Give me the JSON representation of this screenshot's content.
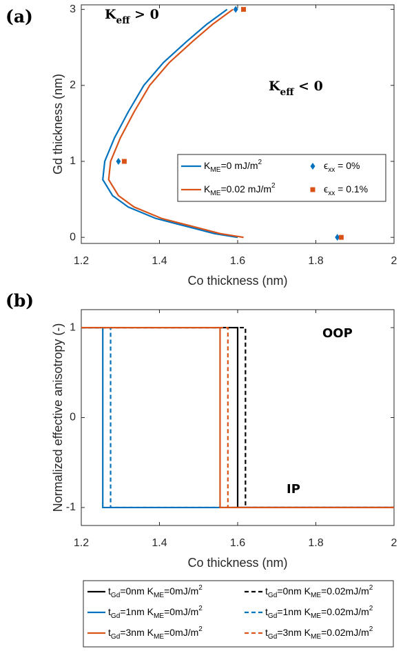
{
  "chart_data": [
    {
      "type": "line",
      "panel_label": "(a)",
      "x_label": "Co thickness (nm)",
      "y_label": "Gd thickness (nm)",
      "xlim": [
        1.2,
        2
      ],
      "xticks": [
        1.2,
        1.4,
        1.6,
        1.8,
        2
      ],
      "ylim": [
        -0.08,
        3.06
      ],
      "yticks": [
        0,
        1,
        2,
        3
      ],
      "grid": false,
      "annotations": [
        [
          {
            "text": "K"
          },
          {
            "text": "eff",
            "sub": true
          },
          {
            "text": " > 0"
          }
        ],
        [
          {
            "text": "K"
          },
          {
            "text": "eff",
            "sub": true
          },
          {
            "text": " < 0"
          }
        ]
      ],
      "series": [
        {
          "name": [
            {
              "text": "K"
            },
            {
              "text": "ME",
              "sub": true
            },
            {
              "text": "=0 mJ/m"
            },
            {
              "text": "2",
              "sup": true
            }
          ],
          "color": "#0072bd",
          "kind": "line",
          "x": [
            1.6,
            1.54,
            1.48,
            1.39,
            1.32,
            1.28,
            1.255,
            1.26,
            1.285,
            1.32,
            1.36,
            1.41,
            1.47,
            1.52,
            1.573
          ],
          "values": [
            0,
            0.05,
            0.13,
            0.25,
            0.4,
            0.55,
            0.76,
            1,
            1.31,
            1.65,
            2,
            2.3,
            2.58,
            2.8,
            3
          ]
        },
        {
          "name": [
            {
              "text": "K"
            },
            {
              "text": "ME",
              "sub": true
            },
            {
              "text": "=0.02 mJ/m"
            },
            {
              "text": "2",
              "sup": true
            }
          ],
          "color": "#d95319",
          "kind": "line",
          "x": [
            1.615,
            1.555,
            1.495,
            1.405,
            1.335,
            1.295,
            1.27,
            1.275,
            1.3,
            1.335,
            1.375,
            1.425,
            1.485,
            1.535,
            1.588
          ],
          "values": [
            0,
            0.05,
            0.13,
            0.25,
            0.4,
            0.55,
            0.76,
            1,
            1.31,
            1.65,
            2,
            2.3,
            2.58,
            2.8,
            3
          ]
        },
        {
          "name": [
            {
              "text": "ϵ"
            },
            {
              "text": "xx",
              "sub": true
            },
            {
              "text": " = 0%"
            }
          ],
          "color": "#0072bd",
          "kind": "scatter",
          "marker": "diamond",
          "x": [
            1.855,
            1.295,
            1.595
          ],
          "values": [
            0,
            1,
            3
          ]
        },
        {
          "name": [
            {
              "text": "ϵ"
            },
            {
              "text": "xx",
              "sub": true
            },
            {
              "text": " = 0.1%"
            }
          ],
          "color": "#d95319",
          "kind": "scatter",
          "marker": "square",
          "x": [
            1.865,
            1.31,
            1.615
          ],
          "values": [
            0,
            1,
            3
          ]
        }
      ]
    },
    {
      "type": "line",
      "panel_label": "(b)",
      "x_label": "Co thickness (nm)",
      "y_label": "Normalized effective anisotropy (-)",
      "xlim": [
        1.2,
        2
      ],
      "xticks": [
        1.2,
        1.4,
        1.6,
        1.8,
        2
      ],
      "ylim": [
        -1.2,
        1.2
      ],
      "yticks": [
        -1,
        0,
        1
      ],
      "grid": false,
      "annotations": [
        [
          {
            "text": "OOP"
          }
        ],
        [
          {
            "text": "IP"
          }
        ]
      ],
      "series": [
        {
          "name": [
            {
              "text": "t"
            },
            {
              "text": "Gd",
              "sub": true
            },
            {
              "text": "=0nm K"
            },
            {
              "text": "ME",
              "sub": true
            },
            {
              "text": "=0mJ/m"
            },
            {
              "text": "2",
              "sup": true
            }
          ],
          "color": "#000000",
          "kind": "line",
          "dashed": false,
          "x": [
            1.2,
            1.6,
            1.6,
            2
          ],
          "values": [
            1,
            1,
            -1,
            -1
          ]
        },
        {
          "name": [
            {
              "text": "t"
            },
            {
              "text": "Gd",
              "sub": true
            },
            {
              "text": "=0nm K"
            },
            {
              "text": "ME",
              "sub": true
            },
            {
              "text": "=0.02mJ/m"
            },
            {
              "text": "2",
              "sup": true
            }
          ],
          "color": "#000000",
          "kind": "line",
          "dashed": true,
          "x": [
            1.2,
            1.62,
            1.62,
            2
          ],
          "values": [
            1,
            1,
            -1,
            -1
          ]
        },
        {
          "name": [
            {
              "text": "t"
            },
            {
              "text": "Gd",
              "sub": true
            },
            {
              "text": "=1nm K"
            },
            {
              "text": "ME",
              "sub": true
            },
            {
              "text": "=0mJ/m"
            },
            {
              "text": "2",
              "sup": true
            }
          ],
          "color": "#0072bd",
          "kind": "line",
          "dashed": false,
          "x": [
            1.2,
            1.255,
            1.255,
            2
          ],
          "values": [
            1,
            1,
            -1,
            -1
          ]
        },
        {
          "name": [
            {
              "text": "t"
            },
            {
              "text": "Gd",
              "sub": true
            },
            {
              "text": "=1nm K"
            },
            {
              "text": "ME",
              "sub": true
            },
            {
              "text": "=0.02mJ/m"
            },
            {
              "text": "2",
              "sup": true
            }
          ],
          "color": "#0072bd",
          "kind": "line",
          "dashed": true,
          "x": [
            1.2,
            1.275,
            1.275,
            2
          ],
          "values": [
            1,
            1,
            -1,
            -1
          ]
        },
        {
          "name": [
            {
              "text": "t"
            },
            {
              "text": "Gd",
              "sub": true
            },
            {
              "text": "=3nm K"
            },
            {
              "text": "ME",
              "sub": true
            },
            {
              "text": "=0mJ/m"
            },
            {
              "text": "2",
              "sup": true
            }
          ],
          "color": "#d95319",
          "kind": "line",
          "dashed": false,
          "x": [
            1.2,
            1.555,
            1.555,
            2
          ],
          "values": [
            1,
            1,
            -1,
            -1
          ]
        },
        {
          "name": [
            {
              "text": "t"
            },
            {
              "text": "Gd",
              "sub": true
            },
            {
              "text": "=3nm K"
            },
            {
              "text": "ME",
              "sub": true
            },
            {
              "text": "=0.02mJ/m"
            },
            {
              "text": "2",
              "sup": true
            }
          ],
          "color": "#d95319",
          "kind": "line",
          "dashed": true,
          "x": [
            1.2,
            1.575,
            1.575,
            2
          ],
          "values": [
            1,
            1,
            -1,
            -1
          ]
        }
      ]
    }
  ]
}
